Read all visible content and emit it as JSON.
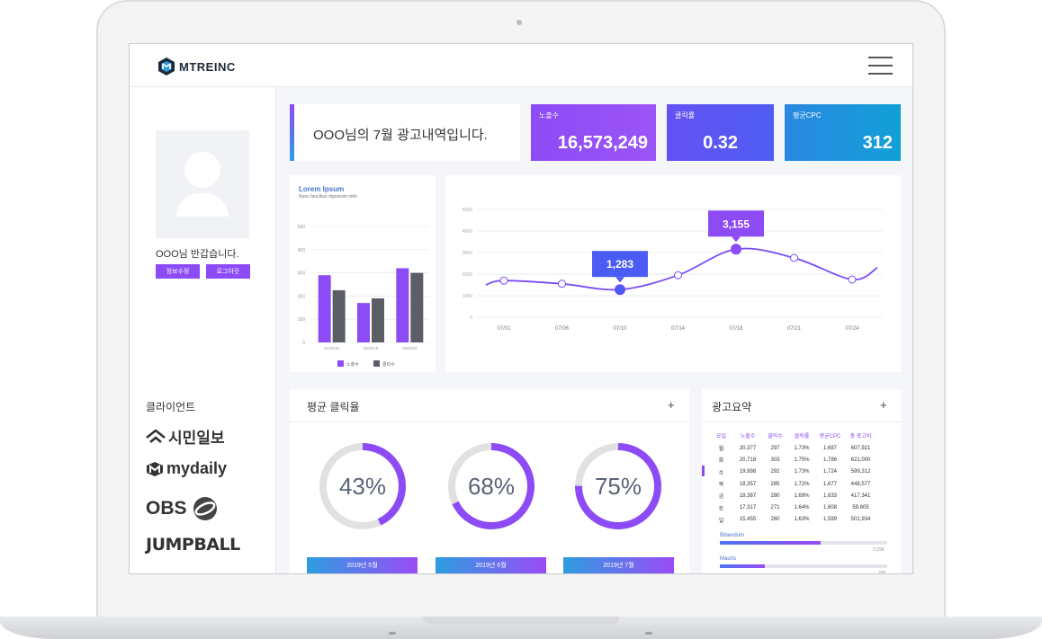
{
  "brand": {
    "name": "MTREINC"
  },
  "profile": {
    "welcome": "OOO님 반갑습니다.",
    "edit_label": "정보수정",
    "logout_label": "로그아웃"
  },
  "clients": {
    "title": "클라이언트",
    "items": [
      "시민일보",
      "mydaily",
      "OBS",
      "JUMPBALL"
    ]
  },
  "greeting": "OOO님의 7월 광고내역입니다.",
  "stats": [
    {
      "label": "노출수",
      "value": "16,573,249",
      "color": "#8d4bf6"
    },
    {
      "label": "클릭률",
      "value": "0.32",
      "color": "#5a56f3"
    },
    {
      "label": "평균CPC",
      "value": "312",
      "color": "#1a9ad9"
    }
  ],
  "bar_chart": {
    "title": "Lorem Ipsum",
    "subtitle": "Nunc faucibus dignissim nibh",
    "legend": [
      "노출수",
      "클릭수"
    ]
  },
  "chart_data": [
    {
      "type": "bar",
      "title": "Lorem Ipsum",
      "subtitle": "Nunc faucibus dignissim nibh",
      "categories": [
        "01/2019",
        "02/2019",
        "03/2019"
      ],
      "series": [
        {
          "name": "노출수",
          "values": [
            290,
            170,
            320
          ],
          "color": "#8d4bf6"
        },
        {
          "name": "클릭수",
          "values": [
            225,
            190,
            300
          ],
          "color": "#5b5e66"
        }
      ],
      "yticks": [
        0,
        100,
        200,
        300,
        400,
        500
      ],
      "ylim": [
        0,
        500
      ],
      "legend": "bottom",
      "grid": true
    },
    {
      "type": "line",
      "x": [
        "07/01",
        "07/06",
        "07/10",
        "07/14",
        "07/18",
        "07/21",
        "07/24"
      ],
      "values": [
        1700,
        1550,
        1283,
        1950,
        3155,
        2750,
        1750
      ],
      "xticks": [
        "07/01",
        "07/06",
        "07/10",
        "07/14",
        "07/18",
        "07/21",
        "07/24"
      ],
      "yticks": [
        0,
        1000,
        2000,
        3000,
        4000,
        5000
      ],
      "ylim": [
        0,
        5000
      ],
      "annotations": [
        {
          "x": "07/10",
          "label": "1,283"
        },
        {
          "x": "07/18",
          "label": "3,155"
        }
      ],
      "grid": true
    }
  ],
  "click_rate": {
    "title": "평균 클릭율",
    "plus": "+",
    "items": [
      {
        "percent": 43,
        "label": "43%",
        "month": "2019년 5월"
      },
      {
        "percent": 68,
        "label": "68%",
        "month": "2019년 6월"
      },
      {
        "percent": 75,
        "label": "75%",
        "month": "2019년 7월"
      }
    ]
  },
  "summary": {
    "title": "광고요약",
    "plus": "+",
    "headers": [
      "요일",
      "노출수",
      "클릭수",
      "클릭률",
      "평균CPC",
      "총 광고비"
    ],
    "rows": [
      [
        "월",
        "20,377",
        "297",
        "1.73%",
        "1,687",
        "607,921"
      ],
      [
        "화",
        "20,718",
        "303",
        "1.75%",
        "1,786",
        "621,000"
      ],
      [
        "수",
        "19,998",
        "292",
        "1.73%",
        "1,724",
        "599,312"
      ],
      [
        "목",
        "18,357",
        "285",
        "1.72%",
        "1,677",
        "448,577"
      ],
      [
        "금",
        "18,387",
        "280",
        "1.69%",
        "1,633",
        "417,341"
      ],
      [
        "토",
        "17,317",
        "271",
        "1.64%",
        "1,608",
        "59,805"
      ],
      [
        "일",
        "15,455",
        "260",
        "1.63%",
        "1,599",
        "501,934"
      ]
    ],
    "bars": [
      {
        "label": "Bibendum",
        "value": "9,298",
        "fraction": 0.6
      },
      {
        "label": "Mauris",
        "value": "286",
        "fraction": 0.27
      }
    ]
  }
}
